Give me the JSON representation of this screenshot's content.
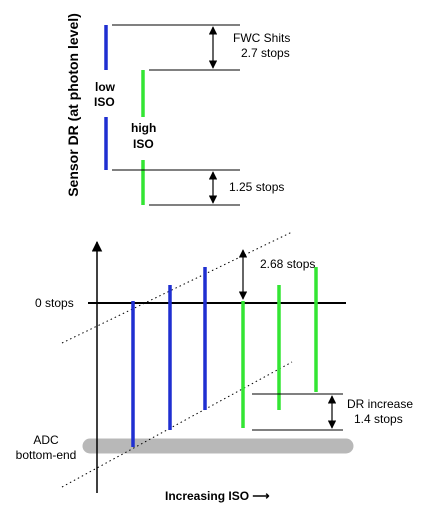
{
  "top": {
    "y_axis_label": "Sensor DR (at photon level)",
    "low_iso_label": [
      "low",
      "ISO"
    ],
    "high_iso_label": [
      "high",
      "ISO"
    ],
    "fwc_label": [
      "FWC Shits",
      "2.7 stops"
    ],
    "floor_shift_label": "1.25 stops"
  },
  "bottom": {
    "zero_stops_label": "0 stops",
    "top_shift_label": "2.68 stops",
    "dr_increase_label": [
      "DR increase",
      "1.4 stops"
    ],
    "adc_label": [
      "ADC",
      "bottom-end"
    ],
    "x_axis_label": "Increasing ISO ⟶"
  },
  "colors": {
    "low_iso": "#1f2fd1",
    "high_iso": "#33e533",
    "adc_band": "#b8b8b8"
  }
}
